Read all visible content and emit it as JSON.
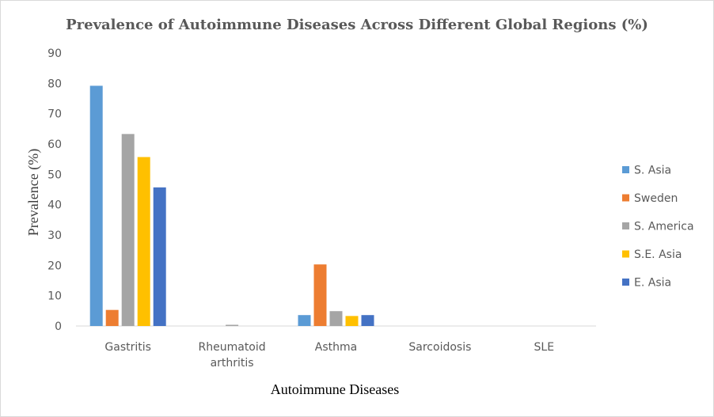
{
  "chart_data": {
    "type": "bar",
    "title": "Prevalence of Autoimmune Diseases Across Different Global Regions (%)",
    "xlabel": "Autoimmune Diseases",
    "ylabel": "Prevalence (%)",
    "ylim": [
      0,
      90
    ],
    "yticks": [
      "0",
      "10",
      "20",
      "30",
      "40",
      "50",
      "60",
      "70",
      "80",
      "90"
    ],
    "categories": [
      [
        "Gastritis"
      ],
      [
        "Rheumatoid",
        "arthritis"
      ],
      [
        "Asthma"
      ],
      [
        "Sarcoidosis"
      ],
      [
        "SLE"
      ]
    ],
    "series": [
      {
        "name": "S. Asia",
        "color": "#5b9bd5",
        "values": [
          79.2,
          0,
          3.6,
          0,
          0
        ]
      },
      {
        "name": "Sweden",
        "color": "#ed7d31",
        "values": [
          5.3,
          0,
          20.3,
          0,
          0
        ]
      },
      {
        "name": "S. America",
        "color": "#a5a5a5",
        "values": [
          63.3,
          0.4,
          4.9,
          0,
          0
        ]
      },
      {
        "name": "S.E. Asia",
        "color": "#ffc000",
        "values": [
          55.7,
          0,
          3.3,
          0,
          0
        ]
      },
      {
        "name": "E. Asia",
        "color": "#4472c4",
        "values": [
          45.7,
          0,
          3.6,
          0,
          0
        ]
      }
    ],
    "grid": false,
    "legend_position": "right"
  }
}
